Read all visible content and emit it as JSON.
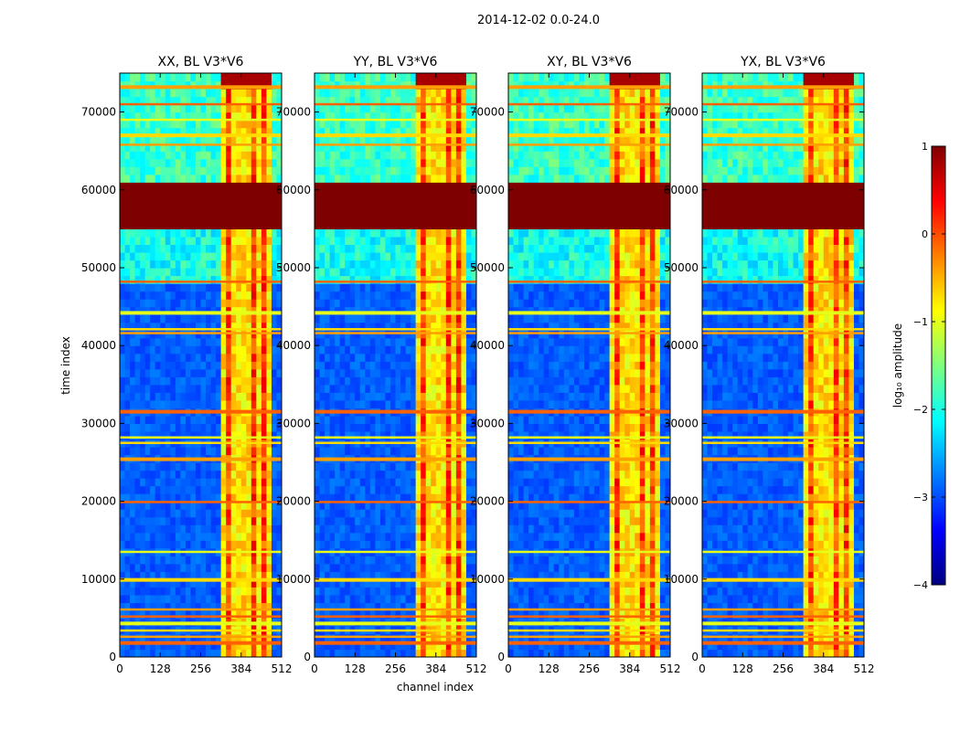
{
  "figure": {
    "suptitle": "2014-12-02 0.0-24.0"
  },
  "chart_data": {
    "type": "heatmap",
    "xlabel": "channel index",
    "ylabel": "time index",
    "xlim": [
      0,
      512
    ],
    "ylim": [
      0,
      75000
    ],
    "x_ticks": [
      0,
      128,
      256,
      384,
      512
    ],
    "y_ticks": [
      0,
      10000,
      20000,
      30000,
      40000,
      50000,
      60000,
      70000
    ],
    "panels": [
      {
        "title": "XX, BL V3*V6"
      },
      {
        "title": "YY, BL V3*V6"
      },
      {
        "title": "XY, BL V3*V6"
      },
      {
        "title": "YX, BL V3*V6"
      }
    ],
    "colorbar": {
      "label": "log₁₀ amplitude",
      "min": -4,
      "max": 1,
      "ticks": [
        1,
        0,
        -1,
        -2,
        -3,
        -4
      ],
      "colormap": "jet",
      "colors": [
        "#00007f",
        "#0000ff",
        "#007fff",
        "#00ffff",
        "#7fff7f",
        "#ffff00",
        "#ff7f00",
        "#ff0000",
        "#7f0000"
      ]
    },
    "flagged_time_range": [
      55000,
      60500
    ],
    "flagged_value": 1
  }
}
